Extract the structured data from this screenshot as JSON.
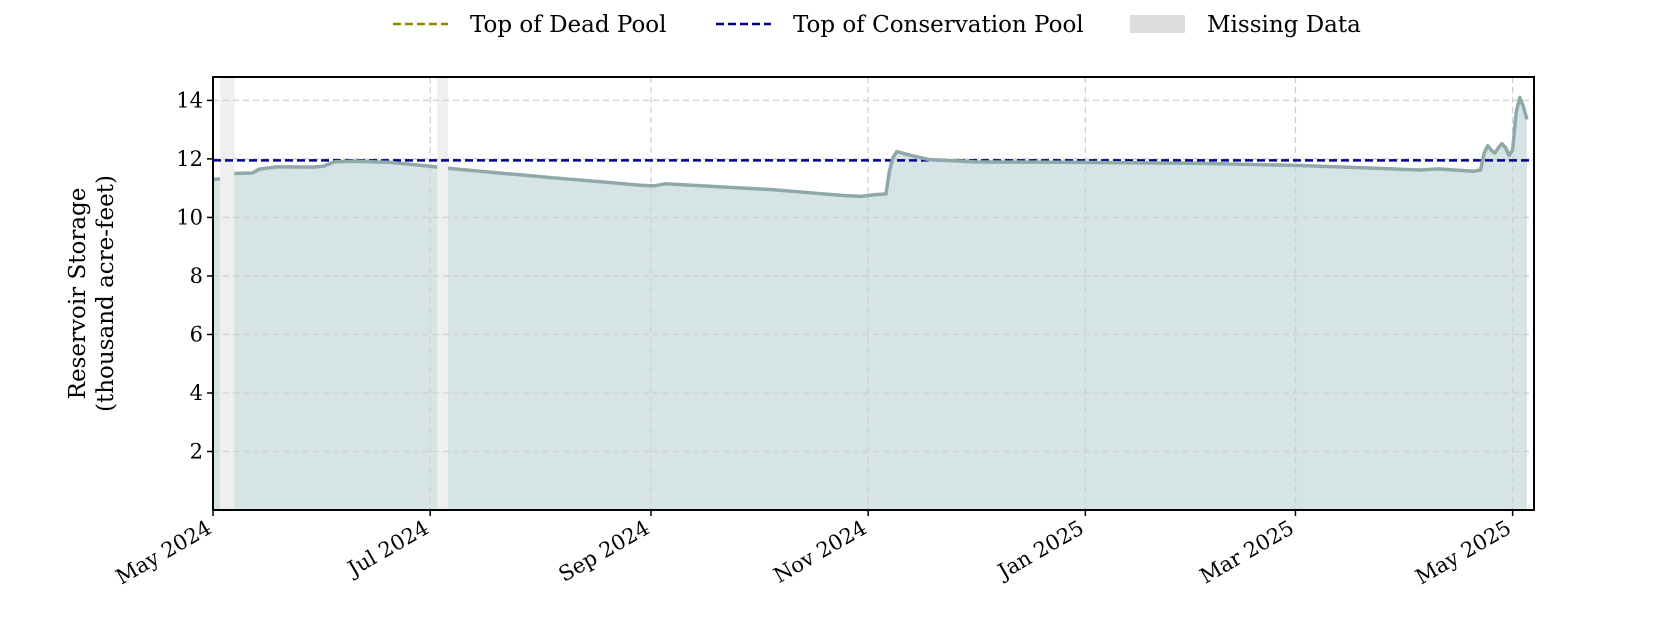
{
  "chart_data": {
    "type": "area",
    "title": "",
    "xlabel": "",
    "ylabel_lines": [
      "Reservoir Storage",
      "(thousand acre-feet)"
    ],
    "x_range": [
      "2024-05-01",
      "2025-05-07"
    ],
    "ylim": [
      0,
      14.8
    ],
    "y_ticks": [
      2,
      4,
      6,
      8,
      10,
      12,
      14
    ],
    "x_ticks": [
      {
        "date": "2024-05-01",
        "label": "May 2024"
      },
      {
        "date": "2024-07-01",
        "label": "Jul 2024"
      },
      {
        "date": "2024-09-01",
        "label": "Sep 2024"
      },
      {
        "date": "2024-11-01",
        "label": "Nov 2024"
      },
      {
        "date": "2025-01-01",
        "label": "Jan 2025"
      },
      {
        "date": "2025-03-01",
        "label": "Mar 2025"
      },
      {
        "date": "2025-05-01",
        "label": "May 2025"
      }
    ],
    "grid": true,
    "legend_position": "top-center",
    "legend": [
      {
        "key": "dead_pool",
        "label": "Top of Dead Pool",
        "style": "dashed",
        "color": "#8b8b00"
      },
      {
        "key": "conservation_pool",
        "label": "Top of Conservation Pool",
        "style": "dashed",
        "color": "#00008b"
      },
      {
        "key": "missing",
        "label": "Missing Data",
        "style": "patch",
        "color": "#dcdcdc"
      }
    ],
    "reference_lines": [
      {
        "key": "conservation_pool",
        "y": 11.95,
        "color": "#00008b"
      }
    ],
    "missing_ranges": [
      [
        "2024-05-03",
        "2024-05-07"
      ],
      [
        "2024-07-03",
        "2024-07-06"
      ]
    ],
    "series": [
      {
        "color": "#8fa9ab",
        "fill": "#d6e4e5",
        "segments": [
          [
            [
              "2024-05-01",
              11.3
            ],
            [
              "2024-05-03",
              11.32
            ]
          ],
          [
            [
              "2024-05-07",
              11.5
            ],
            [
              "2024-05-12",
              11.52
            ],
            [
              "2024-05-14",
              11.65
            ],
            [
              "2024-05-19",
              11.73
            ],
            [
              "2024-05-29",
              11.72
            ],
            [
              "2024-06-01",
              11.75
            ],
            [
              "2024-06-04",
              11.9
            ],
            [
              "2024-06-10",
              11.92
            ],
            [
              "2024-06-20",
              11.88
            ],
            [
              "2024-07-01",
              11.75
            ],
            [
              "2024-07-03",
              11.72
            ]
          ],
          [
            [
              "2024-07-06",
              11.68
            ],
            [
              "2024-07-15",
              11.58
            ],
            [
              "2024-07-25",
              11.47
            ],
            [
              "2024-08-05",
              11.35
            ],
            [
              "2024-08-18",
              11.22
            ],
            [
              "2024-08-29",
              11.1
            ],
            [
              "2024-09-02",
              11.08
            ],
            [
              "2024-09-05",
              11.15
            ],
            [
              "2024-09-20",
              11.05
            ],
            [
              "2024-10-05",
              10.95
            ],
            [
              "2024-10-15",
              10.85
            ],
            [
              "2024-10-25",
              10.75
            ],
            [
              "2024-10-30",
              10.72
            ],
            [
              "2024-11-03",
              10.78
            ],
            [
              "2024-11-06",
              10.8
            ],
            [
              "2024-11-07",
              11.6
            ],
            [
              "2024-11-08",
              12.05
            ],
            [
              "2024-11-09",
              12.25
            ],
            [
              "2024-11-13",
              12.12
            ],
            [
              "2024-11-18",
              11.98
            ],
            [
              "2024-12-01",
              11.9
            ],
            [
              "2025-01-01",
              11.88
            ],
            [
              "2025-02-01",
              11.85
            ],
            [
              "2025-03-01",
              11.78
            ],
            [
              "2025-03-20",
              11.7
            ],
            [
              "2025-04-05",
              11.62
            ],
            [
              "2025-04-10",
              11.66
            ],
            [
              "2025-04-20",
              11.58
            ],
            [
              "2025-04-22",
              11.62
            ],
            [
              "2025-04-23",
              12.2
            ],
            [
              "2025-04-24",
              12.45
            ],
            [
              "2025-04-25",
              12.3
            ],
            [
              "2025-04-26",
              12.2
            ],
            [
              "2025-04-27",
              12.38
            ],
            [
              "2025-04-28",
              12.52
            ],
            [
              "2025-04-29",
              12.38
            ],
            [
              "2025-04-30",
              12.12
            ],
            [
              "2025-05-01",
              12.3
            ],
            [
              "2025-05-02",
              13.6
            ],
            [
              "2025-05-03",
              14.1
            ],
            [
              "2025-05-04",
              13.8
            ],
            [
              "2025-05-05",
              13.35
            ]
          ]
        ]
      }
    ]
  }
}
